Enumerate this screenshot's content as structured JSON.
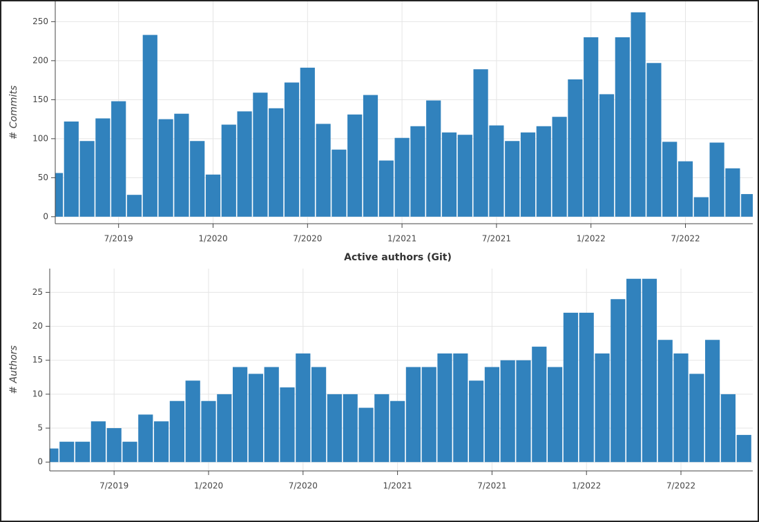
{
  "chart_data": [
    {
      "type": "bar",
      "y_label": "# Commits",
      "color": "#3182bd",
      "grid": true,
      "x": [
        "3/2019",
        "4/2019",
        "5/2019",
        "6/2019",
        "7/2019",
        "8/2019",
        "9/2019",
        "10/2019",
        "11/2019",
        "12/2019",
        "1/2020",
        "2/2020",
        "3/2020",
        "4/2020",
        "5/2020",
        "6/2020",
        "7/2020",
        "8/2020",
        "9/2020",
        "10/2020",
        "11/2020",
        "12/2020",
        "1/2021",
        "2/2021",
        "3/2021",
        "4/2021",
        "5/2021",
        "6/2021",
        "7/2021",
        "8/2021",
        "9/2021",
        "10/2021",
        "11/2021",
        "12/2021",
        "1/2022",
        "2/2022",
        "3/2022",
        "4/2022",
        "5/2022",
        "6/2022",
        "7/2022",
        "8/2022",
        "9/2022",
        "10/2022",
        "11/2022"
      ],
      "values": [
        56,
        122,
        97,
        126,
        148,
        28,
        233,
        125,
        132,
        97,
        54,
        118,
        135,
        159,
        139,
        172,
        191,
        119,
        86,
        131,
        156,
        72,
        101,
        116,
        149,
        108,
        105,
        189,
        117,
        97,
        108,
        116,
        128,
        176,
        230,
        157,
        230,
        262,
        197,
        96,
        71,
        25,
        95,
        62,
        29
      ],
      "xticks": [
        "7/2019",
        "1/2020",
        "7/2020",
        "1/2021",
        "7/2021",
        "1/2022",
        "7/2022"
      ],
      "ylim": [
        -9,
        276
      ],
      "yticks": [
        0,
        50,
        100,
        150,
        200,
        250
      ]
    },
    {
      "type": "bar",
      "title": "Active authors (Git)",
      "y_label": "# Authors",
      "color": "#3182bd",
      "grid": true,
      "x": [
        "3/2019",
        "4/2019",
        "5/2019",
        "6/2019",
        "7/2019",
        "8/2019",
        "9/2019",
        "10/2019",
        "11/2019",
        "12/2019",
        "1/2020",
        "2/2020",
        "3/2020",
        "4/2020",
        "5/2020",
        "6/2020",
        "7/2020",
        "8/2020",
        "9/2020",
        "10/2020",
        "11/2020",
        "12/2020",
        "1/2021",
        "2/2021",
        "3/2021",
        "4/2021",
        "5/2021",
        "6/2021",
        "7/2021",
        "8/2021",
        "9/2021",
        "10/2021",
        "11/2021",
        "12/2021",
        "1/2022",
        "2/2022",
        "3/2022",
        "4/2022",
        "5/2022",
        "6/2022",
        "7/2022",
        "8/2022",
        "9/2022",
        "10/2022",
        "11/2022"
      ],
      "values": [
        2,
        3,
        3,
        6,
        5,
        3,
        7,
        6,
        9,
        12,
        9,
        10,
        14,
        13,
        14,
        11,
        16,
        14,
        10,
        10,
        8,
        10,
        9,
        14,
        14,
        16,
        16,
        12,
        14,
        15,
        15,
        17,
        14,
        22,
        22,
        16,
        24,
        27,
        27,
        18,
        16,
        13,
        18,
        10,
        4
      ],
      "xticks": [
        "7/2019",
        "1/2020",
        "7/2020",
        "1/2021",
        "7/2021",
        "1/2022",
        "7/2022"
      ],
      "ylim": [
        -1.3,
        28.5
      ],
      "yticks": [
        0,
        5,
        10,
        15,
        20,
        25
      ]
    }
  ]
}
